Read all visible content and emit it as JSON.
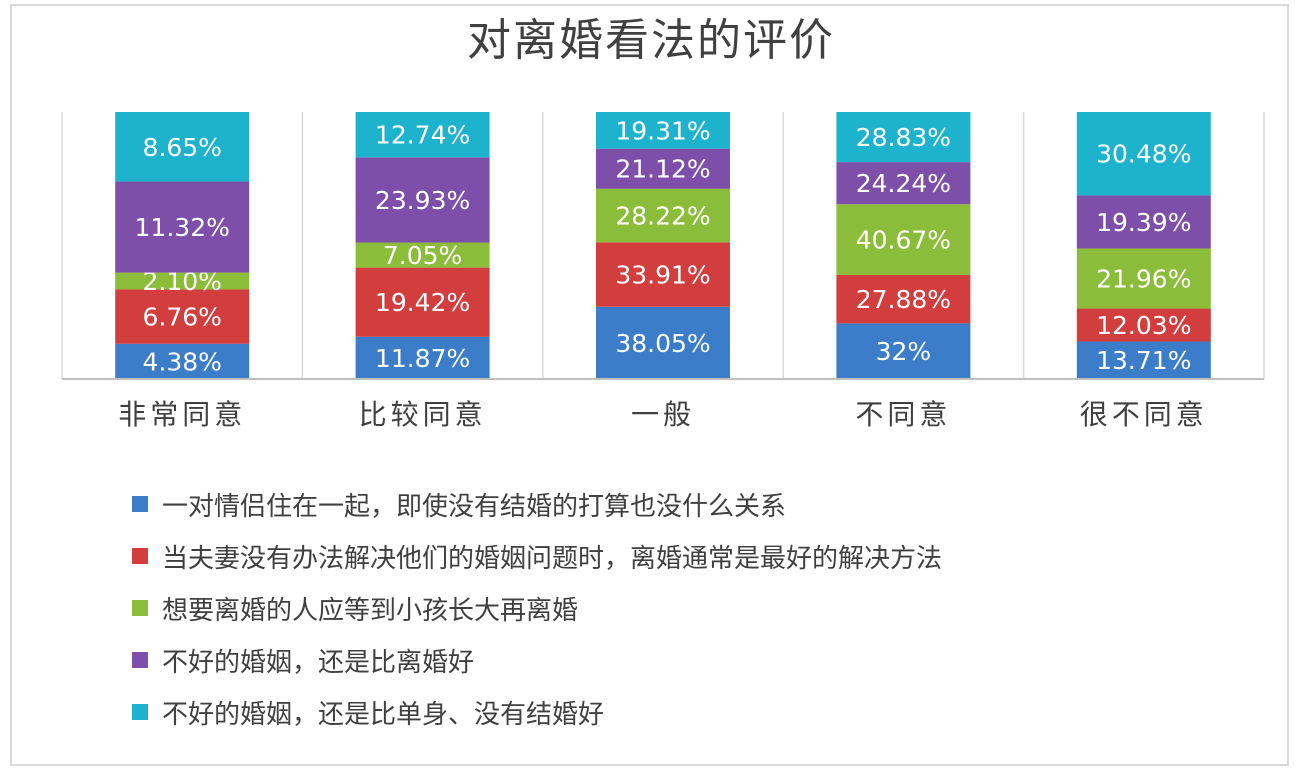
{
  "chart_data": {
    "type": "bar",
    "stacked": true,
    "title": "对离婚看法的评价",
    "categories": [
      "非常同意",
      "比较同意",
      "一般",
      "不同意",
      "很不同意"
    ],
    "series": [
      {
        "name": "一对情侣住在一起，即使没有结婚的打算也没什么关系",
        "color": "#3b7dc9",
        "values": [
          4.38,
          11.87,
          38.05,
          32,
          13.71
        ],
        "labels": [
          "4.38%",
          "11.87%",
          "38.05%",
          "32%",
          "13.71%"
        ]
      },
      {
        "name": "当夫妻没有办法解决他们的婚姻问题时，离婚通常是最好的解决方法",
        "color": "#d23d3d",
        "values": [
          6.76,
          19.42,
          33.91,
          27.88,
          12.03
        ],
        "labels": [
          "6.76%",
          "19.42%",
          "33.91%",
          "27.88%",
          "12.03%"
        ]
      },
      {
        "name": "想要离婚的人应等到小孩长大再离婚",
        "color": "#8bbd3a",
        "values": [
          2.1,
          7.05,
          28.22,
          40.67,
          21.96
        ],
        "labels": [
          "2.10%",
          "7.05%",
          "28.22%",
          "40.67%",
          "21.96%"
        ]
      },
      {
        "name": "不好的婚姻，还是比离婚好",
        "color": "#7e4fa8",
        "values": [
          11.32,
          23.93,
          21.12,
          24.24,
          19.39
        ],
        "labels": [
          "11.32%",
          "23.93%",
          "21.12%",
          "24.24%",
          "19.39%"
        ]
      },
      {
        "name": "不好的婚姻，还是比单身、没有结婚好",
        "color": "#1eb3cd",
        "values": [
          8.65,
          12.74,
          19.31,
          28.83,
          30.48
        ],
        "labels": [
          "8.65%",
          "12.74%",
          "19.31%",
          "28.83%",
          "30.48%"
        ]
      }
    ],
    "grid": true,
    "legend": "bottom-left",
    "label_color": "#ffffff",
    "gridline_color": "#d9d9d9",
    "axis_color": "#bfbfbf",
    "text_color": "#404040"
  }
}
